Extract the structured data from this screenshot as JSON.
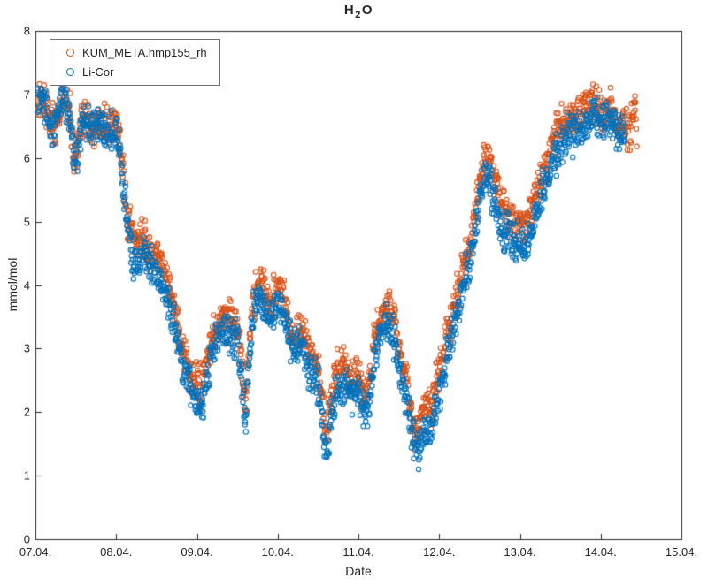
{
  "title": {
    "base": "H",
    "sub": "2",
    "tail": "O"
  },
  "chart_data": {
    "type": "scatter",
    "title": "H_2O",
    "xlabel": "Date",
    "ylabel": "mmol/mol",
    "x_domain": [
      7,
      15
    ],
    "ylim": [
      0,
      8
    ],
    "x_tick_labels": [
      "07.04.",
      "08.04.",
      "09.04.",
      "10.04.",
      "11.04.",
      "12.04.",
      "13.04.",
      "14.04.",
      "15.04."
    ],
    "y_tick_labels": [
      "0",
      "1",
      "2",
      "3",
      "4",
      "5",
      "6",
      "7",
      "8"
    ],
    "grid": false,
    "legend_position": "top-left",
    "axis_color": "#262626",
    "legend": [
      {
        "label": "KUM_META.hmp155_rh",
        "color": "#D95319"
      },
      {
        "label": "Li-Cor",
        "color": "#0072BD"
      }
    ],
    "marker": {
      "radius": 2.7,
      "line_width": 1.1,
      "band_jitter": 0.3,
      "sample_step_days": 0.0045
    },
    "series": [
      {
        "name": "KUM_META.hmp155_rh",
        "color": "#D95319",
        "points": [
          [
            7.03,
            6.85
          ],
          [
            7.08,
            7.0
          ],
          [
            7.13,
            6.85
          ],
          [
            7.18,
            6.6
          ],
          [
            7.23,
            6.5
          ],
          [
            7.28,
            6.75
          ],
          [
            7.33,
            7.0
          ],
          [
            7.38,
            6.95
          ],
          [
            7.43,
            6.65
          ],
          [
            7.48,
            6.0
          ],
          [
            7.53,
            6.15
          ],
          [
            7.58,
            6.65
          ],
          [
            7.63,
            6.65
          ],
          [
            7.68,
            6.5
          ],
          [
            7.73,
            6.55
          ],
          [
            7.78,
            6.6
          ],
          [
            7.83,
            6.5
          ],
          [
            7.88,
            6.45
          ],
          [
            7.93,
            6.5
          ],
          [
            8.0,
            6.45
          ],
          [
            8.05,
            6.2
          ],
          [
            8.1,
            5.6
          ],
          [
            8.15,
            5.05
          ],
          [
            8.2,
            4.7
          ],
          [
            8.25,
            4.6
          ],
          [
            8.3,
            4.7
          ],
          [
            8.35,
            4.7
          ],
          [
            8.4,
            4.6
          ],
          [
            8.45,
            4.5
          ],
          [
            8.5,
            4.45
          ],
          [
            8.55,
            4.35
          ],
          [
            8.6,
            4.15
          ],
          [
            8.65,
            4.0
          ],
          [
            8.7,
            3.75
          ],
          [
            8.75,
            3.55
          ],
          [
            8.8,
            3.15
          ],
          [
            8.85,
            2.85
          ],
          [
            8.9,
            2.7
          ],
          [
            8.95,
            2.55
          ],
          [
            9.0,
            2.45
          ],
          [
            9.05,
            2.4
          ],
          [
            9.1,
            2.65
          ],
          [
            9.15,
            2.95
          ],
          [
            9.2,
            3.2
          ],
          [
            9.25,
            3.35
          ],
          [
            9.3,
            3.45
          ],
          [
            9.35,
            3.5
          ],
          [
            9.4,
            3.45
          ],
          [
            9.45,
            3.4
          ],
          [
            9.5,
            3.35
          ],
          [
            9.55,
            2.85
          ],
          [
            9.6,
            2.1
          ],
          [
            9.65,
            3.15
          ],
          [
            9.7,
            3.8
          ],
          [
            9.75,
            4.0
          ],
          [
            9.8,
            4.0
          ],
          [
            9.85,
            3.85
          ],
          [
            9.9,
            3.7
          ],
          [
            9.95,
            3.8
          ],
          [
            10.0,
            3.95
          ],
          [
            10.05,
            3.9
          ],
          [
            10.1,
            3.65
          ],
          [
            10.15,
            3.35
          ],
          [
            10.2,
            3.2
          ],
          [
            10.25,
            3.25
          ],
          [
            10.3,
            3.3
          ],
          [
            10.35,
            3.1
          ],
          [
            10.4,
            2.9
          ],
          [
            10.45,
            2.8
          ],
          [
            10.5,
            2.7
          ],
          [
            10.55,
            2.15
          ],
          [
            10.6,
            1.6
          ],
          [
            10.65,
            2.1
          ],
          [
            10.7,
            2.55
          ],
          [
            10.75,
            2.65
          ],
          [
            10.8,
            2.7
          ],
          [
            10.85,
            2.65
          ],
          [
            10.9,
            2.55
          ],
          [
            10.95,
            2.6
          ],
          [
            11.0,
            2.6
          ],
          [
            11.05,
            2.4
          ],
          [
            11.1,
            2.25
          ],
          [
            11.15,
            2.6
          ],
          [
            11.2,
            3.15
          ],
          [
            11.25,
            3.45
          ],
          [
            11.3,
            3.6
          ],
          [
            11.35,
            3.7
          ],
          [
            11.4,
            3.6
          ],
          [
            11.45,
            3.4
          ],
          [
            11.5,
            3.0
          ],
          [
            11.55,
            2.7
          ],
          [
            11.6,
            2.5
          ],
          [
            11.65,
            2.05
          ],
          [
            11.7,
            1.7
          ],
          [
            11.75,
            1.8
          ],
          [
            11.8,
            1.95
          ],
          [
            11.85,
            2.05
          ],
          [
            11.9,
            2.1
          ],
          [
            11.95,
            2.3
          ],
          [
            12.0,
            2.6
          ],
          [
            12.05,
            2.9
          ],
          [
            12.1,
            3.25
          ],
          [
            12.15,
            3.5
          ],
          [
            12.2,
            3.75
          ],
          [
            12.25,
            4.0
          ],
          [
            12.3,
            4.3
          ],
          [
            12.35,
            4.55
          ],
          [
            12.4,
            4.8
          ],
          [
            12.45,
            5.2
          ],
          [
            12.5,
            5.6
          ],
          [
            12.55,
            5.95
          ],
          [
            12.6,
            6.05
          ],
          [
            12.65,
            5.85
          ],
          [
            12.7,
            5.55
          ],
          [
            12.75,
            5.35
          ],
          [
            12.8,
            5.2
          ],
          [
            12.85,
            5.1
          ],
          [
            12.9,
            5.05
          ],
          [
            12.95,
            5.0
          ],
          [
            13.0,
            4.95
          ],
          [
            13.05,
            4.9
          ],
          [
            13.1,
            5.05
          ],
          [
            13.15,
            5.2
          ],
          [
            13.2,
            5.45
          ],
          [
            13.25,
            5.65
          ],
          [
            13.3,
            5.85
          ],
          [
            13.35,
            6.05
          ],
          [
            13.4,
            6.25
          ],
          [
            13.45,
            6.4
          ],
          [
            13.5,
            6.55
          ],
          [
            13.55,
            6.6
          ],
          [
            13.6,
            6.6
          ],
          [
            13.65,
            6.65
          ],
          [
            13.7,
            6.7
          ],
          [
            13.75,
            6.75
          ],
          [
            13.8,
            6.8
          ],
          [
            13.85,
            6.85
          ],
          [
            13.9,
            6.9
          ],
          [
            13.95,
            6.8
          ],
          [
            14.0,
            6.7
          ],
          [
            14.05,
            6.75
          ],
          [
            14.1,
            6.85
          ],
          [
            14.15,
            6.7
          ],
          [
            14.2,
            6.55
          ],
          [
            14.25,
            6.5
          ],
          [
            14.3,
            6.45
          ],
          [
            14.35,
            6.4
          ],
          [
            14.39,
            6.55
          ],
          [
            14.42,
            6.95
          ],
          [
            14.45,
            6.45
          ]
        ]
      },
      {
        "name": "Li-Cor",
        "color": "#0072BD",
        "points": [
          [
            7.03,
            6.8
          ],
          [
            7.08,
            6.95
          ],
          [
            7.13,
            6.8
          ],
          [
            7.18,
            6.55
          ],
          [
            7.23,
            6.45
          ],
          [
            7.28,
            6.7
          ],
          [
            7.33,
            6.95
          ],
          [
            7.38,
            6.9
          ],
          [
            7.43,
            6.6
          ],
          [
            7.48,
            5.95
          ],
          [
            7.53,
            6.1
          ],
          [
            7.58,
            6.6
          ],
          [
            7.63,
            6.6
          ],
          [
            7.68,
            6.45
          ],
          [
            7.73,
            6.5
          ],
          [
            7.78,
            6.55
          ],
          [
            7.83,
            6.45
          ],
          [
            7.88,
            6.4
          ],
          [
            7.93,
            6.45
          ],
          [
            8.0,
            6.4
          ],
          [
            8.05,
            6.1
          ],
          [
            8.1,
            5.4
          ],
          [
            8.15,
            4.8
          ],
          [
            8.2,
            4.45
          ],
          [
            8.25,
            4.35
          ],
          [
            8.3,
            4.45
          ],
          [
            8.35,
            4.45
          ],
          [
            8.4,
            4.35
          ],
          [
            8.45,
            4.25
          ],
          [
            8.5,
            4.2
          ],
          [
            8.55,
            4.1
          ],
          [
            8.6,
            3.9
          ],
          [
            8.65,
            3.75
          ],
          [
            8.7,
            3.5
          ],
          [
            8.75,
            3.3
          ],
          [
            8.8,
            2.9
          ],
          [
            8.85,
            2.6
          ],
          [
            8.9,
            2.45
          ],
          [
            8.95,
            2.3
          ],
          [
            9.0,
            2.2
          ],
          [
            9.05,
            2.15
          ],
          [
            9.1,
            2.4
          ],
          [
            9.15,
            2.7
          ],
          [
            9.2,
            2.95
          ],
          [
            9.25,
            3.1
          ],
          [
            9.3,
            3.2
          ],
          [
            9.35,
            3.25
          ],
          [
            9.4,
            3.2
          ],
          [
            9.45,
            3.15
          ],
          [
            9.5,
            3.1
          ],
          [
            9.55,
            2.6
          ],
          [
            9.6,
            1.85
          ],
          [
            9.65,
            2.9
          ],
          [
            9.7,
            3.55
          ],
          [
            9.75,
            3.75
          ],
          [
            9.8,
            3.75
          ],
          [
            9.85,
            3.6
          ],
          [
            9.9,
            3.45
          ],
          [
            9.95,
            3.55
          ],
          [
            10.0,
            3.7
          ],
          [
            10.05,
            3.65
          ],
          [
            10.1,
            3.4
          ],
          [
            10.15,
            3.1
          ],
          [
            10.2,
            2.95
          ],
          [
            10.25,
            3.0
          ],
          [
            10.3,
            3.05
          ],
          [
            10.35,
            2.85
          ],
          [
            10.4,
            2.65
          ],
          [
            10.45,
            2.55
          ],
          [
            10.5,
            2.45
          ],
          [
            10.55,
            1.9
          ],
          [
            10.6,
            1.3
          ],
          [
            10.65,
            1.8
          ],
          [
            10.7,
            2.25
          ],
          [
            10.75,
            2.35
          ],
          [
            10.8,
            2.4
          ],
          [
            10.85,
            2.35
          ],
          [
            10.9,
            2.25
          ],
          [
            10.95,
            2.3
          ],
          [
            11.0,
            2.3
          ],
          [
            11.05,
            2.1
          ],
          [
            11.1,
            1.95
          ],
          [
            11.15,
            2.3
          ],
          [
            11.2,
            2.85
          ],
          [
            11.25,
            3.15
          ],
          [
            11.3,
            3.3
          ],
          [
            11.35,
            3.4
          ],
          [
            11.4,
            3.3
          ],
          [
            11.45,
            3.1
          ],
          [
            11.5,
            2.7
          ],
          [
            11.55,
            2.4
          ],
          [
            11.6,
            2.2
          ],
          [
            11.65,
            1.75
          ],
          [
            11.7,
            1.4
          ],
          [
            11.75,
            1.5
          ],
          [
            11.8,
            1.65
          ],
          [
            11.85,
            1.75
          ],
          [
            11.9,
            1.8
          ],
          [
            11.95,
            2.0
          ],
          [
            12.0,
            2.3
          ],
          [
            12.05,
            2.6
          ],
          [
            12.1,
            2.95
          ],
          [
            12.15,
            3.2
          ],
          [
            12.2,
            3.45
          ],
          [
            12.25,
            3.7
          ],
          [
            12.3,
            4.0
          ],
          [
            12.35,
            4.25
          ],
          [
            12.4,
            4.5
          ],
          [
            12.45,
            4.9
          ],
          [
            12.5,
            5.3
          ],
          [
            12.55,
            5.6
          ],
          [
            12.6,
            5.7
          ],
          [
            12.65,
            5.5
          ],
          [
            12.7,
            5.2
          ],
          [
            12.75,
            5.0
          ],
          [
            12.8,
            4.85
          ],
          [
            12.85,
            4.75
          ],
          [
            12.9,
            4.7
          ],
          [
            12.95,
            4.65
          ],
          [
            13.0,
            4.6
          ],
          [
            13.05,
            4.55
          ],
          [
            13.1,
            4.7
          ],
          [
            13.15,
            4.85
          ],
          [
            13.2,
            5.1
          ],
          [
            13.25,
            5.3
          ],
          [
            13.3,
            5.5
          ],
          [
            13.35,
            5.7
          ],
          [
            13.4,
            5.9
          ],
          [
            13.45,
            6.05
          ],
          [
            13.5,
            6.2
          ],
          [
            13.55,
            6.3
          ],
          [
            13.6,
            6.35
          ],
          [
            13.65,
            6.4
          ],
          [
            13.7,
            6.45
          ],
          [
            13.75,
            6.5
          ],
          [
            13.8,
            6.55
          ],
          [
            13.85,
            6.6
          ],
          [
            13.9,
            6.65
          ],
          [
            13.95,
            6.6
          ],
          [
            14.0,
            6.55
          ],
          [
            14.05,
            6.6
          ],
          [
            14.1,
            6.65
          ],
          [
            14.15,
            6.55
          ],
          [
            14.2,
            6.45
          ],
          [
            14.25,
            6.4
          ],
          [
            14.3,
            6.35
          ]
        ]
      }
    ]
  }
}
